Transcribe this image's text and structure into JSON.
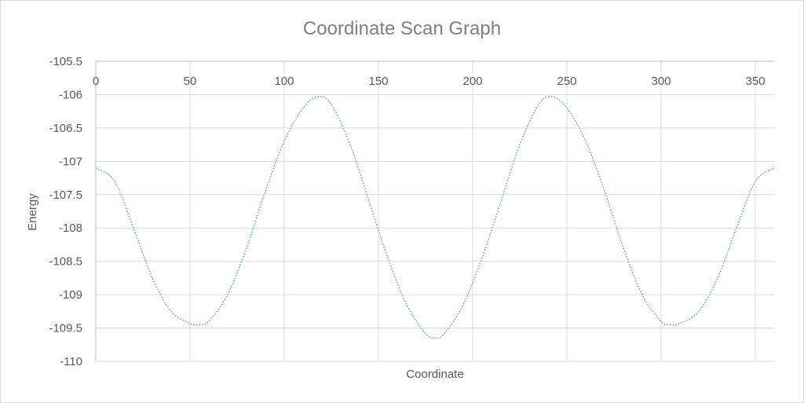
{
  "chart_data": {
    "type": "line",
    "title": "Coordinate Scan Graph",
    "xlabel": "Coordinate",
    "ylabel": "Energy",
    "xlim": [
      0,
      360
    ],
    "ylim": [
      -110,
      -105.5
    ],
    "x_ticks": [
      0,
      50,
      100,
      150,
      200,
      250,
      300,
      350
    ],
    "y_ticks": [
      -105.5,
      -106,
      -106.5,
      -107,
      -107.5,
      -108,
      -108.5,
      -109,
      -109.5,
      -110
    ],
    "grid": true,
    "legend": "none",
    "series": [
      {
        "color": "#5b9bd5",
        "line_style": "dotted",
        "x": [
          0,
          10,
          20,
          30,
          40,
          50,
          55,
          60,
          70,
          80,
          90,
          100,
          110,
          118,
          125,
          135,
          145,
          155,
          165,
          175,
          180,
          185,
          195,
          205,
          215,
          225,
          235,
          242,
          250,
          260,
          270,
          280,
          290,
          300,
          305,
          310,
          320,
          330,
          340,
          350,
          360
        ],
        "y": [
          -107.1,
          -107.3,
          -108.0,
          -108.75,
          -109.25,
          -109.43,
          -109.45,
          -109.4,
          -109.0,
          -108.3,
          -107.45,
          -106.7,
          -106.2,
          -106.03,
          -106.15,
          -106.75,
          -107.6,
          -108.45,
          -109.15,
          -109.58,
          -109.65,
          -109.58,
          -109.15,
          -108.45,
          -107.6,
          -106.75,
          -106.15,
          -106.03,
          -106.2,
          -106.7,
          -107.45,
          -108.3,
          -109.0,
          -109.4,
          -109.45,
          -109.43,
          -109.25,
          -108.75,
          -108.0,
          -107.3,
          -107.1
        ]
      }
    ]
  }
}
